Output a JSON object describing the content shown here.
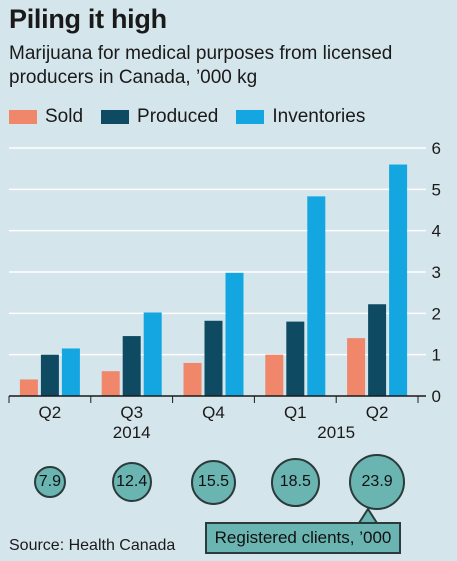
{
  "title": "Piling it high",
  "subtitle": "Marijuana for medical purposes from licensed producers in Canada, ’000 kg",
  "source": "Source: Health Canada",
  "colors": {
    "background": "#d5e5ec",
    "sold": "#f0866a",
    "produced": "#0f4a63",
    "inventories": "#14a6e0",
    "client_circle": "#6ab4b2"
  },
  "chart_data": {
    "type": "bar",
    "categories": [
      "Q2",
      "Q3",
      "Q4",
      "Q1",
      "Q2"
    ],
    "year_labels": [
      {
        "label": "2014",
        "category_index": 1
      },
      {
        "label": "2015",
        "category_index": 3.5
      }
    ],
    "series": [
      {
        "name": "Sold",
        "values": [
          0.4,
          0.6,
          0.8,
          1.0,
          1.4
        ]
      },
      {
        "name": "Produced",
        "values": [
          1.0,
          1.45,
          1.82,
          1.8,
          2.22
        ]
      },
      {
        "name": "Inventories",
        "values": [
          1.15,
          2.02,
          2.98,
          4.83,
          5.6
        ]
      }
    ],
    "ylim": [
      0,
      6
    ],
    "yticks": [
      0,
      1,
      2,
      3,
      4,
      5,
      6
    ],
    "y_axis_side": "right",
    "grid": true,
    "legend_position": "top-left"
  },
  "registered_clients": {
    "label": "Registered clients, ’000",
    "values": [
      "7.9",
      "12.4",
      "15.5",
      "18.5",
      "23.9"
    ],
    "magnitudes": [
      7.9,
      12.4,
      15.5,
      18.5,
      23.9
    ]
  }
}
